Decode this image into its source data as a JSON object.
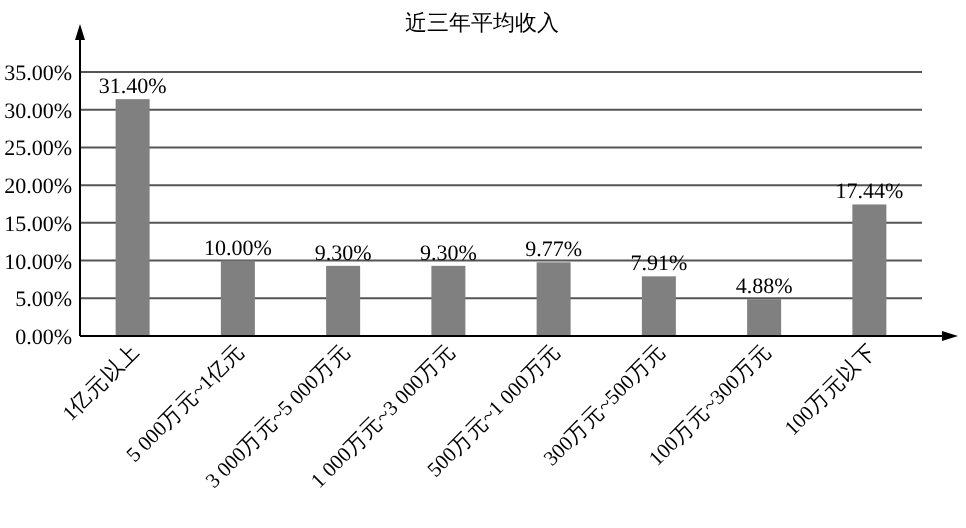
{
  "chart_data": {
    "type": "bar",
    "title": "近三年平均收入",
    "categories": [
      "1亿元以上",
      "5 000万元~1亿元",
      "3 000万元~5 000万元",
      "1 000万元~3 000万元",
      "500万元~1 000万元",
      "300万元~500万元",
      "100万元~300万元",
      "100万元以下"
    ],
    "values": [
      31.4,
      10.0,
      9.3,
      9.3,
      9.77,
      7.91,
      4.88,
      17.44
    ],
    "value_labels": [
      "31.40%",
      "10.00%",
      "9.30%",
      "9.30%",
      "9.77%",
      "7.91%",
      "4.88%",
      "17.44%"
    ],
    "color": "#808080",
    "ylim": [
      0,
      35
    ],
    "yticks": [
      {
        "value": 0,
        "label": "0.00%"
      },
      {
        "value": 5,
        "label": "5.00%"
      },
      {
        "value": 10,
        "label": "10.00%"
      },
      {
        "value": 15,
        "label": "15.00%"
      },
      {
        "value": 20,
        "label": "20.00%"
      },
      {
        "value": 25,
        "label": "25.00%"
      },
      {
        "value": 30,
        "label": "30.00%"
      },
      {
        "value": 35,
        "label": "35.00%"
      }
    ],
    "grid": "y"
  }
}
